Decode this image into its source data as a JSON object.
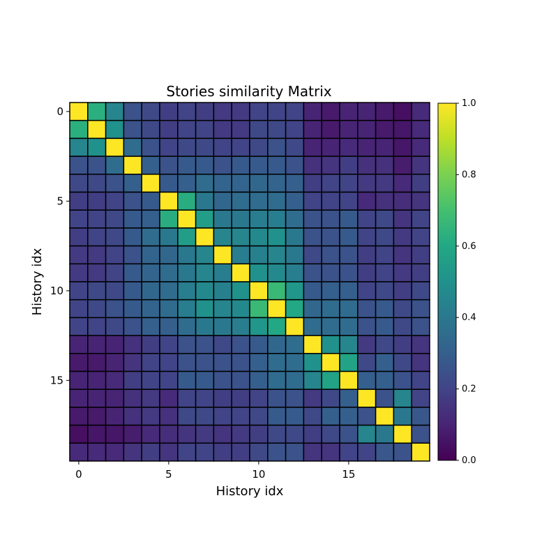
{
  "chart_data": {
    "type": "heatmap",
    "title": "Stories similarity Matrix",
    "xlabel": "History idx",
    "ylabel": "History idx",
    "x_ticks": [
      0,
      5,
      10,
      15
    ],
    "y_ticks": [
      0,
      5,
      10,
      15
    ],
    "x_tick_labels": [
      "0",
      "5",
      "10",
      "15"
    ],
    "y_tick_labels": [
      "0",
      "5",
      "10",
      "15"
    ],
    "colormap": "viridis",
    "colorbar": {
      "range": [
        0.0,
        1.0
      ],
      "ticks": [
        0.0,
        0.2,
        0.4,
        0.6,
        0.8,
        1.0
      ],
      "tick_labels": [
        "0.0",
        "0.2",
        "0.4",
        "0.6",
        "0.8",
        "1.0"
      ]
    },
    "grid": "black cell borders",
    "matrix": [
      [
        1.0,
        0.63,
        0.45,
        0.25,
        0.22,
        0.18,
        0.2,
        0.18,
        0.17,
        0.17,
        0.2,
        0.2,
        0.2,
        0.1,
        0.07,
        0.1,
        0.1,
        0.07,
        0.04,
        0.12
      ],
      [
        0.63,
        1.0,
        0.5,
        0.25,
        0.22,
        0.18,
        0.2,
        0.2,
        0.17,
        0.17,
        0.22,
        0.22,
        0.2,
        0.1,
        0.07,
        0.1,
        0.1,
        0.07,
        0.06,
        0.12
      ],
      [
        0.45,
        0.5,
        1.0,
        0.35,
        0.25,
        0.2,
        0.22,
        0.22,
        0.2,
        0.2,
        0.22,
        0.25,
        0.22,
        0.1,
        0.1,
        0.12,
        0.1,
        0.1,
        0.06,
        0.12
      ],
      [
        0.25,
        0.25,
        0.35,
        1.0,
        0.3,
        0.25,
        0.28,
        0.28,
        0.25,
        0.28,
        0.28,
        0.28,
        0.25,
        0.14,
        0.15,
        0.18,
        0.14,
        0.14,
        0.08,
        0.15
      ],
      [
        0.22,
        0.22,
        0.25,
        0.3,
        1.0,
        0.28,
        0.3,
        0.35,
        0.32,
        0.32,
        0.33,
        0.32,
        0.3,
        0.18,
        0.2,
        0.2,
        0.17,
        0.17,
        0.12,
        0.18
      ],
      [
        0.18,
        0.18,
        0.2,
        0.25,
        0.28,
        1.0,
        0.62,
        0.4,
        0.33,
        0.35,
        0.35,
        0.35,
        0.3,
        0.2,
        0.2,
        0.2,
        0.12,
        0.14,
        0.13,
        0.15
      ],
      [
        0.2,
        0.2,
        0.22,
        0.28,
        0.3,
        0.62,
        1.0,
        0.55,
        0.4,
        0.4,
        0.42,
        0.42,
        0.35,
        0.25,
        0.25,
        0.28,
        0.2,
        0.22,
        0.15,
        0.2
      ],
      [
        0.18,
        0.2,
        0.22,
        0.28,
        0.35,
        0.4,
        0.55,
        1.0,
        0.45,
        0.45,
        0.47,
        0.5,
        0.4,
        0.25,
        0.25,
        0.28,
        0.2,
        0.22,
        0.17,
        0.2
      ],
      [
        0.17,
        0.17,
        0.2,
        0.25,
        0.32,
        0.33,
        0.4,
        0.45,
        1.0,
        0.42,
        0.43,
        0.45,
        0.4,
        0.22,
        0.25,
        0.25,
        0.18,
        0.2,
        0.15,
        0.18
      ],
      [
        0.17,
        0.17,
        0.2,
        0.28,
        0.32,
        0.35,
        0.4,
        0.45,
        0.42,
        1.0,
        0.5,
        0.47,
        0.42,
        0.25,
        0.25,
        0.25,
        0.18,
        0.2,
        0.17,
        0.18
      ],
      [
        0.2,
        0.22,
        0.22,
        0.28,
        0.33,
        0.35,
        0.42,
        0.47,
        0.43,
        0.5,
        1.0,
        0.67,
        0.52,
        0.28,
        0.3,
        0.3,
        0.2,
        0.22,
        0.18,
        0.22
      ],
      [
        0.2,
        0.22,
        0.25,
        0.28,
        0.32,
        0.35,
        0.42,
        0.5,
        0.45,
        0.47,
        0.67,
        1.0,
        0.6,
        0.33,
        0.35,
        0.35,
        0.25,
        0.28,
        0.22,
        0.25
      ],
      [
        0.2,
        0.2,
        0.22,
        0.25,
        0.3,
        0.3,
        0.35,
        0.4,
        0.4,
        0.42,
        0.52,
        0.6,
        1.0,
        0.35,
        0.35,
        0.35,
        0.25,
        0.28,
        0.22,
        0.25
      ],
      [
        0.1,
        0.1,
        0.1,
        0.14,
        0.18,
        0.2,
        0.25,
        0.25,
        0.22,
        0.25,
        0.28,
        0.33,
        0.35,
        1.0,
        0.5,
        0.45,
        0.17,
        0.22,
        0.18,
        0.15
      ],
      [
        0.07,
        0.07,
        0.1,
        0.15,
        0.2,
        0.2,
        0.25,
        0.25,
        0.25,
        0.25,
        0.3,
        0.35,
        0.35,
        0.5,
        1.0,
        0.58,
        0.22,
        0.3,
        0.22,
        0.15
      ],
      [
        0.1,
        0.1,
        0.12,
        0.18,
        0.2,
        0.2,
        0.28,
        0.28,
        0.25,
        0.25,
        0.3,
        0.35,
        0.35,
        0.45,
        0.58,
        1.0,
        0.3,
        0.3,
        0.25,
        0.2
      ],
      [
        0.1,
        0.1,
        0.1,
        0.14,
        0.17,
        0.12,
        0.2,
        0.2,
        0.18,
        0.18,
        0.2,
        0.25,
        0.25,
        0.17,
        0.22,
        0.3,
        1.0,
        0.25,
        0.45,
        0.2
      ],
      [
        0.07,
        0.07,
        0.1,
        0.14,
        0.17,
        0.14,
        0.22,
        0.22,
        0.2,
        0.2,
        0.22,
        0.28,
        0.28,
        0.22,
        0.3,
        0.3,
        0.25,
        1.0,
        0.4,
        0.27
      ],
      [
        0.04,
        0.06,
        0.06,
        0.08,
        0.12,
        0.13,
        0.15,
        0.17,
        0.15,
        0.17,
        0.18,
        0.22,
        0.22,
        0.18,
        0.22,
        0.25,
        0.45,
        0.4,
        1.0,
        0.25
      ],
      [
        0.12,
        0.12,
        0.12,
        0.15,
        0.18,
        0.15,
        0.2,
        0.2,
        0.18,
        0.18,
        0.22,
        0.25,
        0.25,
        0.15,
        0.15,
        0.2,
        0.2,
        0.27,
        0.25,
        1.0
      ]
    ]
  }
}
